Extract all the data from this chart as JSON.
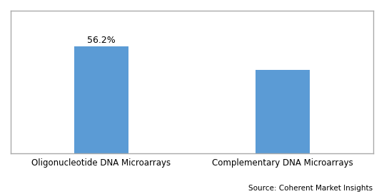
{
  "categories": [
    "Oligonucleotide DNA Microarrays",
    "Complementary DNA Microarrays"
  ],
  "values": [
    56.2,
    43.8
  ],
  "bar_color": "#5B9BD5",
  "bar_label": "56.2%",
  "bar_label_index": 0,
  "source_text": "Source: Coherent Market Insights",
  "ylim": [
    0,
    75
  ],
  "bar_width": 0.3,
  "figsize": [
    5.38,
    2.72
  ],
  "dpi": 100,
  "label_fontsize": 8.5,
  "source_fontsize": 7.5,
  "bar_label_fontsize": 9,
  "background_color": "#ffffff",
  "spine_color": "#aaaaaa",
  "border_color": "#aaaaaa"
}
